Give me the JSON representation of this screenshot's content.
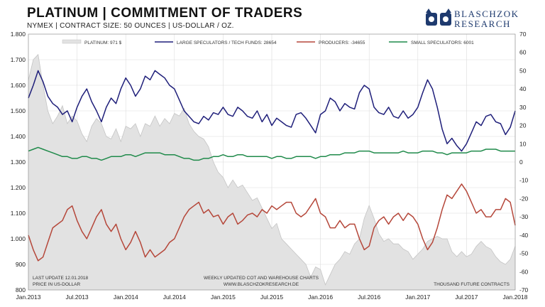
{
  "header": {
    "title": "PLATINUM  |  COMMITMENT OF TRADERS",
    "subtitle": "NYMEX  |  CONTRACT SIZE: 50 OUNCES  |  US-DOLLAR / OZ."
  },
  "logo": {
    "line1": "BLASCHZOK",
    "line2": "RESEARCH"
  },
  "colors": {
    "platinum_fill": "#e2e2e2",
    "platinum_line": "#c4c4c4",
    "large_speculators": "#1f1f7a",
    "producers": "#b5473a",
    "small_speculators": "#1f8a4a",
    "grid": "#dcdcdc"
  },
  "chart_data": {
    "type": "line",
    "title": "PLATINUM  |  COMMITMENT OF TRADERS",
    "x_ticks": [
      "Jan.2013",
      "Jul.2013",
      "Jan.2014",
      "Jul.2014",
      "Jan.2015",
      "Jul.2015",
      "Jan.2016",
      "Jul.2016",
      "Jan.2017",
      "Jul.2017",
      "Jan.2018"
    ],
    "y_left": {
      "range": [
        800,
        1800
      ],
      "ticks": [
        "800",
        "900",
        "1.000",
        "1.100",
        "1.200",
        "1.300",
        "1.400",
        "1.500",
        "1.600",
        "1.700",
        "1.800"
      ]
    },
    "y_right": {
      "range": [
        -70,
        70
      ],
      "unit": "THOUSAND  FUTURE CONTRACTS",
      "ticks": [
        "70",
        "60",
        "50",
        "40",
        "30",
        "20",
        "10",
        "0",
        "-10",
        "-20",
        "-30",
        "-40",
        "-50",
        "-60",
        "-70"
      ]
    },
    "grid": true,
    "legend_position": "top",
    "legend": [
      {
        "label": "PLATINUM: 971 $",
        "series": "platinum"
      },
      {
        "label": "LARGE SPECULATORS / TECH FUNDS: 28654",
        "series": "large_speculators"
      },
      {
        "label": "PRODUCERS: -34655",
        "series": "producers"
      },
      {
        "label": "SMALL SPECULATORS: 6001",
        "series": "small_speculators"
      }
    ],
    "series": [
      {
        "name": "PLATINUM: 971 $",
        "axis": "left",
        "style": "area",
        "x": [
          0,
          0.1,
          0.2,
          0.3,
          0.4,
          0.5,
          0.6,
          0.7,
          0.8,
          0.9,
          1,
          1.1,
          1.2,
          1.3,
          1.4,
          1.5,
          1.6,
          1.7,
          1.8,
          1.9,
          2,
          2.1,
          2.2,
          2.3,
          2.4,
          2.5,
          2.6,
          2.7,
          2.8,
          2.9,
          3,
          3.1,
          3.2,
          3.3,
          3.4,
          3.5,
          3.6,
          3.7,
          3.8,
          3.9,
          4,
          4.1,
          4.2,
          4.3,
          4.4,
          4.5,
          4.6,
          4.7,
          4.8,
          4.9,
          5,
          5.1,
          5.2,
          5.3,
          5.4,
          5.5,
          5.6,
          5.7,
          5.8,
          5.9,
          6,
          6.1,
          6.2,
          6.3,
          6.4,
          6.5,
          6.6,
          6.7,
          6.8,
          6.9,
          7,
          7.1,
          7.2,
          7.3,
          7.4,
          7.5,
          7.6,
          7.7,
          7.8,
          7.9,
          8,
          8.1,
          8.2,
          8.3,
          8.4,
          8.5,
          8.6,
          8.7,
          8.8,
          8.9,
          9,
          9.1,
          9.2,
          9.3,
          9.4,
          9.5,
          9.6,
          9.7,
          9.8,
          9.9,
          10
        ],
        "values": [
          1620,
          1700,
          1720,
          1600,
          1500,
          1450,
          1480,
          1520,
          1450,
          1480,
          1460,
          1410,
          1380,
          1440,
          1470,
          1450,
          1400,
          1390,
          1430,
          1380,
          1440,
          1430,
          1450,
          1400,
          1450,
          1440,
          1480,
          1440,
          1470,
          1450,
          1490,
          1480,
          1510,
          1450,
          1420,
          1400,
          1390,
          1360,
          1300,
          1260,
          1240,
          1200,
          1230,
          1200,
          1210,
          1180,
          1150,
          1160,
          1120,
          1080,
          1040,
          1060,
          1000,
          980,
          960,
          940,
          920,
          900,
          850,
          890,
          880,
          820,
          860,
          900,
          920,
          950,
          940,
          980,
          1000,
          1080,
          1130,
          1080,
          1020,
          990,
          1000,
          980,
          980,
          960,
          950,
          920,
          940,
          960,
          990,
          1000,
          1010,
          1000,
          1000,
          950,
          930,
          950,
          930,
          940,
          970,
          990,
          970,
          960,
          930,
          910,
          900,
          920,
          971
        ]
      },
      {
        "name": "LARGE SPECULATORS / TECH FUNDS: 28654",
        "axis": "right",
        "style": "line",
        "x": [
          0,
          0.1,
          0.2,
          0.3,
          0.4,
          0.5,
          0.6,
          0.7,
          0.8,
          0.9,
          1,
          1.1,
          1.2,
          1.3,
          1.4,
          1.5,
          1.6,
          1.7,
          1.8,
          1.9,
          2,
          2.1,
          2.2,
          2.3,
          2.4,
          2.5,
          2.6,
          2.7,
          2.8,
          2.9,
          3,
          3.1,
          3.2,
          3.3,
          3.4,
          3.5,
          3.6,
          3.7,
          3.8,
          3.9,
          4,
          4.1,
          4.2,
          4.3,
          4.4,
          4.5,
          4.6,
          4.7,
          4.8,
          4.9,
          5,
          5.1,
          5.2,
          5.3,
          5.4,
          5.5,
          5.6,
          5.7,
          5.8,
          5.9,
          6,
          6.1,
          6.2,
          6.3,
          6.4,
          6.5,
          6.6,
          6.7,
          6.8,
          6.9,
          7,
          7.1,
          7.2,
          7.3,
          7.4,
          7.5,
          7.6,
          7.7,
          7.8,
          7.9,
          8,
          8.1,
          8.2,
          8.3,
          8.4,
          8.5,
          8.6,
          8.7,
          8.8,
          8.9,
          9,
          9.1,
          9.2,
          9.3,
          9.4,
          9.5,
          9.6,
          9.7,
          9.8,
          9.9,
          10
        ],
        "values": [
          35,
          42,
          50,
          44,
          36,
          32,
          30,
          26,
          28,
          22,
          30,
          36,
          40,
          33,
          28,
          22,
          30,
          35,
          32,
          40,
          46,
          42,
          36,
          40,
          47,
          45,
          50,
          48,
          46,
          42,
          40,
          34,
          28,
          25,
          22,
          21,
          25,
          23,
          27,
          26,
          30,
          26,
          25,
          30,
          28,
          25,
          24,
          28,
          22,
          26,
          20,
          24,
          22,
          20,
          19,
          26,
          27,
          24,
          20,
          16,
          26,
          28,
          35,
          33,
          28,
          32,
          30,
          29,
          38,
          42,
          40,
          30,
          27,
          26,
          30,
          25,
          24,
          28,
          24,
          26,
          30,
          38,
          45,
          40,
          30,
          18,
          10,
          13,
          9,
          6,
          10,
          16,
          22,
          20,
          25,
          26,
          22,
          21,
          15,
          19,
          28
        ]
      },
      {
        "name": "PRODUCERS: -34655",
        "axis": "right",
        "style": "line",
        "x": [
          0,
          0.1,
          0.2,
          0.3,
          0.4,
          0.5,
          0.6,
          0.7,
          0.8,
          0.9,
          1,
          1.1,
          1.2,
          1.3,
          1.4,
          1.5,
          1.6,
          1.7,
          1.8,
          1.9,
          2,
          2.1,
          2.2,
          2.3,
          2.4,
          2.5,
          2.6,
          2.7,
          2.8,
          2.9,
          3,
          3.1,
          3.2,
          3.3,
          3.4,
          3.5,
          3.6,
          3.7,
          3.8,
          3.9,
          4,
          4.1,
          4.2,
          4.3,
          4.4,
          4.5,
          4.6,
          4.7,
          4.8,
          4.9,
          5,
          5.1,
          5.2,
          5.3,
          5.4,
          5.5,
          5.6,
          5.7,
          5.8,
          5.9,
          6,
          6.1,
          6.2,
          6.3,
          6.4,
          6.5,
          6.6,
          6.7,
          6.8,
          6.9,
          7,
          7.1,
          7.2,
          7.3,
          7.4,
          7.5,
          7.6,
          7.7,
          7.8,
          7.9,
          8,
          8.1,
          8.2,
          8.3,
          8.4,
          8.5,
          8.6,
          8.7,
          8.8,
          8.9,
          9,
          9.1,
          9.2,
          9.3,
          9.4,
          9.5,
          9.6,
          9.7,
          9.8,
          9.9,
          10
        ],
        "values": [
          -40,
          -48,
          -54,
          -52,
          -44,
          -36,
          -34,
          -32,
          -26,
          -24,
          -32,
          -38,
          -42,
          -36,
          -30,
          -26,
          -34,
          -38,
          -34,
          -42,
          -48,
          -44,
          -38,
          -44,
          -52,
          -48,
          -52,
          -50,
          -48,
          -44,
          -42,
          -36,
          -30,
          -26,
          -24,
          -22,
          -28,
          -26,
          -30,
          -29,
          -34,
          -30,
          -28,
          -34,
          -32,
          -29,
          -28,
          -30,
          -26,
          -28,
          -24,
          -26,
          -24,
          -22,
          -22,
          -28,
          -30,
          -28,
          -24,
          -20,
          -28,
          -30,
          -36,
          -36,
          -32,
          -36,
          -34,
          -34,
          -42,
          -48,
          -46,
          -36,
          -32,
          -30,
          -34,
          -30,
          -28,
          -32,
          -28,
          -30,
          -34,
          -42,
          -48,
          -44,
          -36,
          -26,
          -18,
          -20,
          -16,
          -12,
          -16,
          -22,
          -28,
          -26,
          -30,
          -30,
          -26,
          -26,
          -20,
          -22,
          -34.655
        ]
      },
      {
        "name": "SMALL SPECULATORS: 6001",
        "axis": "right",
        "style": "line",
        "x": [
          0,
          0.1,
          0.2,
          0.3,
          0.4,
          0.5,
          0.6,
          0.7,
          0.8,
          0.9,
          1,
          1.1,
          1.2,
          1.3,
          1.4,
          1.5,
          1.6,
          1.7,
          1.8,
          1.9,
          2,
          2.1,
          2.2,
          2.3,
          2.4,
          2.5,
          2.6,
          2.7,
          2.8,
          2.9,
          3,
          3.1,
          3.2,
          3.3,
          3.4,
          3.5,
          3.6,
          3.7,
          3.8,
          3.9,
          4,
          4.1,
          4.2,
          4.3,
          4.4,
          4.5,
          4.6,
          4.7,
          4.8,
          4.9,
          5,
          5.1,
          5.2,
          5.3,
          5.4,
          5.5,
          5.6,
          5.7,
          5.8,
          5.9,
          6,
          6.1,
          6.2,
          6.3,
          6.4,
          6.5,
          6.6,
          6.7,
          6.8,
          6.9,
          7,
          7.1,
          7.2,
          7.3,
          7.4,
          7.5,
          7.6,
          7.7,
          7.8,
          7.9,
          8,
          8.1,
          8.2,
          8.3,
          8.4,
          8.5,
          8.6,
          8.7,
          8.8,
          8.9,
          9,
          9.1,
          9.2,
          9.3,
          9.4,
          9.5,
          9.6,
          9.7,
          9.8,
          9.9,
          10
        ],
        "values": [
          6,
          7,
          8,
          7,
          6,
          5,
          4,
          3,
          3,
          2,
          2,
          3,
          3,
          2,
          2,
          1,
          2,
          3,
          3,
          3,
          4,
          4,
          3,
          4,
          5,
          5,
          5,
          5,
          4,
          4,
          4,
          3,
          2,
          2,
          1,
          1,
          2,
          2,
          3,
          3,
          4,
          3,
          3,
          4,
          4,
          3,
          3,
          3,
          3,
          3,
          2,
          3,
          3,
          2,
          2,
          3,
          3,
          3,
          3,
          2,
          3,
          3,
          4,
          4,
          4,
          5,
          5,
          5,
          6,
          6,
          6,
          5,
          5,
          5,
          5,
          5,
          5,
          6,
          5,
          5,
          5,
          6,
          6,
          6,
          5,
          5,
          4,
          5,
          5,
          5,
          5,
          6,
          6,
          6,
          7,
          7,
          7,
          6,
          6,
          6,
          6
        ]
      }
    ]
  },
  "footer": {
    "left1": "LAST UPDATE 12.01.2018",
    "left2": "PRICE IN US-DOLLAR",
    "center1": "WEEKLY  UPDATED  COT  AND  WAREHOUSE  CHARTS",
    "center2": "WWW.BLASCHZOKRESEARCH.DE",
    "right": "THOUSAND  FUTURE CONTRACTS"
  }
}
